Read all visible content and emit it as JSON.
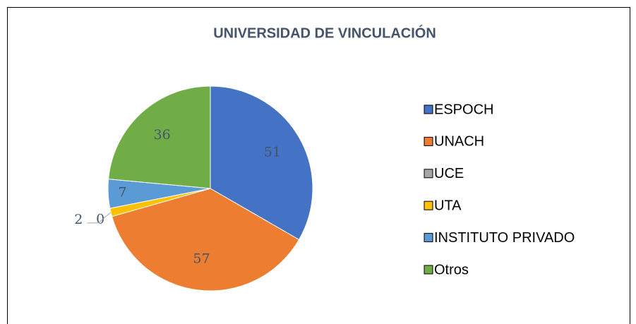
{
  "chart_data": {
    "type": "pie",
    "title": "UNIVERSIDAD DE VINCULACIÓN",
    "categories": [
      "ESPOCH",
      "UNACH",
      "UCE",
      "UTA",
      "INSTITUTO PRIVADO",
      "Otros"
    ],
    "values": [
      51,
      57,
      0,
      2,
      7,
      36
    ],
    "colors": [
      "#4472c4",
      "#ed7d31",
      "#a5a5a5",
      "#ffc000",
      "#5b9bd5",
      "#70ad47"
    ],
    "legend": "right"
  }
}
